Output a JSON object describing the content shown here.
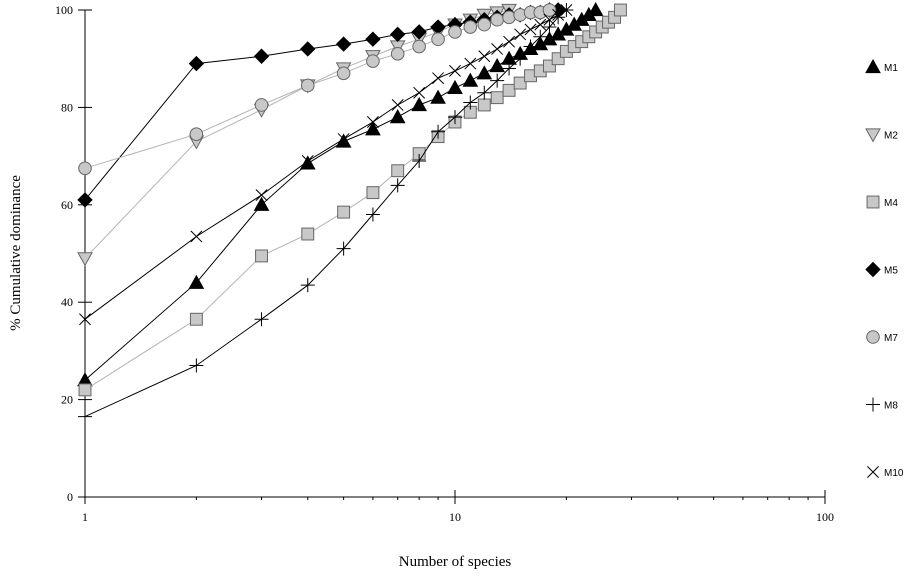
{
  "chart_data": {
    "type": "scatter",
    "xscale": "log",
    "xlim": [
      1,
      100
    ],
    "ylim": [
      0,
      100
    ],
    "xlabel": "Number of species",
    "ylabel": "% Cumulative dominance",
    "x_ticks": [
      "1",
      "10",
      "100"
    ],
    "y_ticks": [
      "0",
      "20",
      "40",
      "60",
      "80",
      "100"
    ],
    "grid": false,
    "legend_position": "right",
    "series": [
      {
        "name": "M1",
        "marker": "triangle-up",
        "fill": "#000000",
        "line": "#000000",
        "x": [
          1,
          2,
          3,
          4,
          5,
          6,
          7,
          8,
          9,
          10,
          11,
          12,
          13,
          14,
          15,
          16,
          17,
          18,
          19,
          20,
          21,
          22,
          23,
          24
        ],
        "y": [
          24,
          44,
          60,
          68.5,
          73,
          75.5,
          78,
          80.5,
          82,
          84,
          85.5,
          87,
          88.5,
          90,
          91,
          92,
          93,
          94,
          95,
          96,
          97,
          98,
          99,
          100
        ]
      },
      {
        "name": "M2",
        "marker": "triangle-down",
        "fill": "#c8c8c8",
        "line": "#b4b4b4",
        "x": [
          1,
          2,
          3,
          4,
          5,
          6,
          7,
          8,
          9,
          10,
          11,
          12,
          13,
          14
        ],
        "y": [
          49,
          73,
          79.5,
          84.5,
          88,
          90.5,
          92.5,
          94,
          95.5,
          97,
          98,
          99,
          99.5,
          100
        ]
      },
      {
        "name": "M4",
        "marker": "square",
        "fill": "#c8c8c8",
        "line": "#b4b4b4",
        "x": [
          1,
          2,
          3,
          4,
          5,
          6,
          7,
          8,
          9,
          10,
          11,
          12,
          13,
          14,
          15,
          16,
          17,
          18,
          19,
          20,
          21,
          22,
          23,
          24,
          25,
          26,
          27,
          28
        ],
        "y": [
          22,
          36.5,
          49.5,
          54,
          58.5,
          62.5,
          67,
          70.5,
          74,
          77,
          79,
          80.5,
          82,
          83.5,
          85,
          86.5,
          87.5,
          88.5,
          90,
          91.5,
          92.5,
          93.5,
          94.5,
          95.5,
          96.5,
          97.5,
          98.5,
          100
        ]
      },
      {
        "name": "M5",
        "marker": "diamond",
        "fill": "#000000",
        "line": "#000000",
        "x": [
          1,
          2,
          3,
          4,
          5,
          6,
          7,
          8,
          9,
          10,
          11,
          12,
          13,
          14,
          15,
          16,
          17,
          18,
          19
        ],
        "y": [
          61,
          89,
          90.5,
          92,
          93,
          94,
          95,
          95.5,
          96.5,
          97,
          97.5,
          98,
          98.5,
          99,
          99,
          99.5,
          99.5,
          100,
          100
        ]
      },
      {
        "name": "M7",
        "marker": "circle",
        "fill": "#c8c8c8",
        "line": "#b4b4b4",
        "x": [
          1,
          2,
          3,
          4,
          5,
          6,
          7,
          8,
          9,
          10,
          11,
          12,
          13,
          14,
          15,
          16,
          17,
          18
        ],
        "y": [
          67.5,
          74.5,
          80.5,
          84.5,
          87,
          89.5,
          91,
          92.5,
          94,
          95.5,
          96.5,
          97,
          98,
          98.5,
          99,
          99.5,
          99.5,
          100
        ]
      },
      {
        "name": "M8",
        "marker": "plus",
        "fill": "#000000",
        "line": "#000000",
        "x": [
          1,
          2,
          3,
          4,
          5,
          6,
          7,
          8,
          9,
          10,
          11,
          12,
          13,
          14,
          15,
          16,
          17,
          18,
          19,
          20
        ],
        "y": [
          16.5,
          27,
          36.5,
          43.5,
          51,
          58,
          64,
          69,
          75,
          78,
          81,
          83,
          85.5,
          88,
          90,
          92.5,
          94.5,
          96.5,
          98.5,
          100
        ]
      },
      {
        "name": "M10",
        "marker": "cross",
        "fill": "#000000",
        "line": "#000000",
        "x": [
          1,
          2,
          3,
          4,
          5,
          6,
          7,
          8,
          9,
          10,
          11,
          12,
          13,
          14,
          15,
          16,
          17,
          18,
          19,
          20
        ],
        "y": [
          36.5,
          53.5,
          62,
          69,
          73.5,
          77,
          80.5,
          83,
          86,
          87.5,
          89,
          90.5,
          92,
          93.5,
          95,
          96,
          97,
          98,
          99,
          100
        ]
      }
    ]
  }
}
